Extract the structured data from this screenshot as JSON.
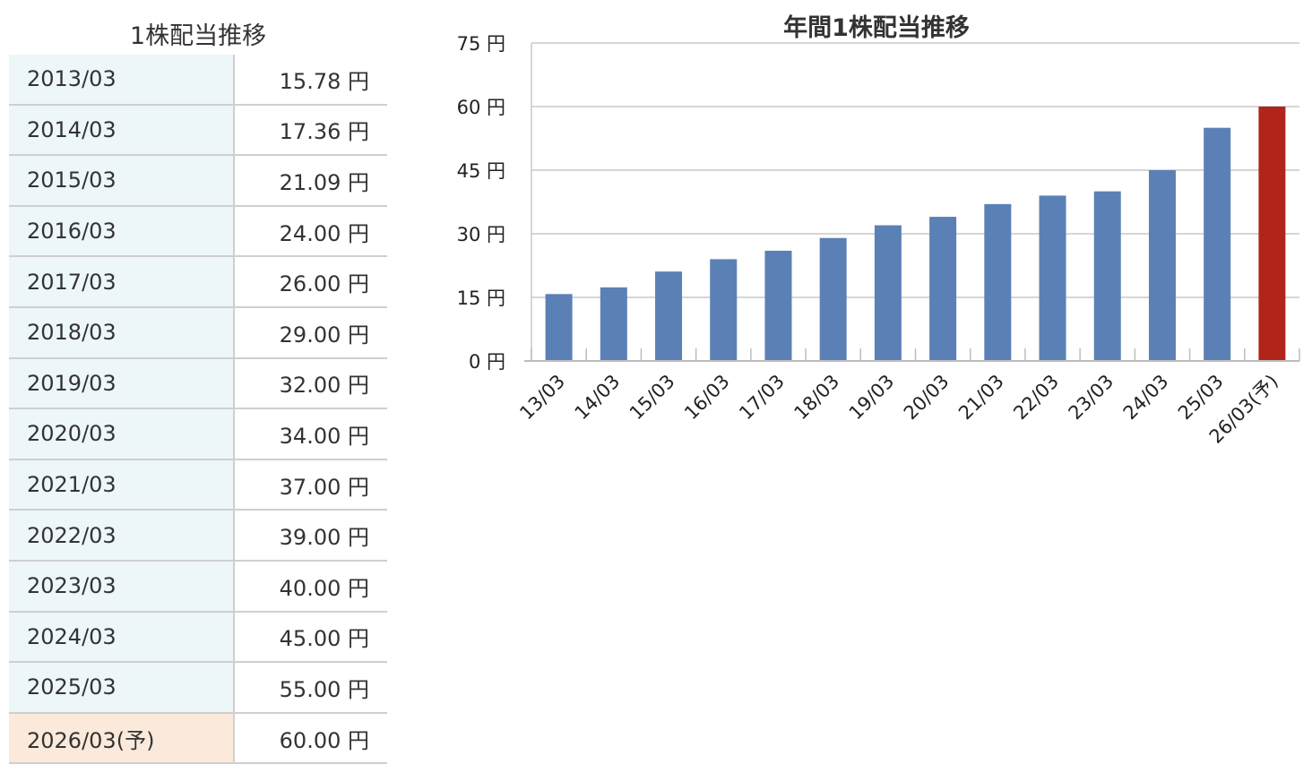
{
  "table": {
    "title": "1株配当推移",
    "rows": [
      {
        "period": "2013/03",
        "value": "15.78 円"
      },
      {
        "period": "2014/03",
        "value": "17.36 円"
      },
      {
        "period": "2015/03",
        "value": "21.09 円"
      },
      {
        "period": "2016/03",
        "value": "24.00 円"
      },
      {
        "period": "2017/03",
        "value": "26.00 円"
      },
      {
        "period": "2018/03",
        "value": "29.00 円"
      },
      {
        "period": "2019/03",
        "value": "32.00 円"
      },
      {
        "period": "2020/03",
        "value": "34.00 円"
      },
      {
        "period": "2021/03",
        "value": "37.00 円"
      },
      {
        "period": "2022/03",
        "value": "39.00 円"
      },
      {
        "period": "2023/03",
        "value": "40.00 円"
      },
      {
        "period": "2024/03",
        "value": "45.00 円"
      },
      {
        "period": "2025/03",
        "value": "55.00 円"
      },
      {
        "period": "2026/03(予)",
        "value": "60.00 円",
        "forecast": true
      }
    ]
  },
  "chart_data": {
    "type": "bar",
    "title": "年間1株配当推移",
    "categories": [
      "13/03",
      "14/03",
      "15/03",
      "16/03",
      "17/03",
      "18/03",
      "19/03",
      "20/03",
      "21/03",
      "22/03",
      "23/03",
      "24/03",
      "25/03",
      "26/03(予)"
    ],
    "values": [
      15.78,
      17.36,
      21.09,
      24.0,
      26.0,
      29.0,
      32.0,
      34.0,
      37.0,
      39.0,
      40.0,
      45.0,
      55.0,
      60.0
    ],
    "ylim": [
      0,
      75
    ],
    "yticks": [
      0,
      15,
      30,
      45,
      60,
      75
    ],
    "y_unit": "円",
    "grid": true,
    "colors": {
      "actual": "#5b80b5",
      "forecast": "#b0241a",
      "grid": "#c8c8c8"
    }
  }
}
